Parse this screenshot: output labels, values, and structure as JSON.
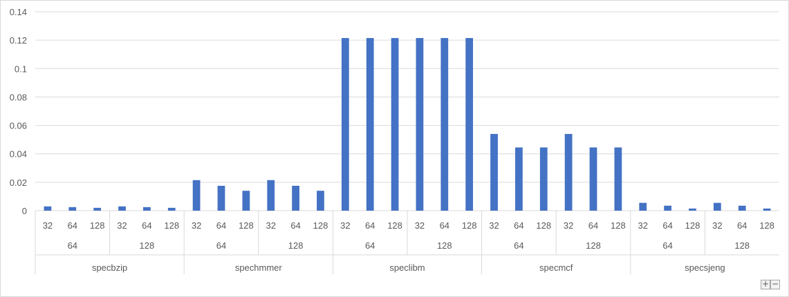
{
  "chart_data": {
    "type": "bar",
    "title": "",
    "xlabel": "",
    "ylabel": "",
    "ylim": [
      0,
      0.14
    ],
    "yticks": [
      0,
      0.02,
      0.04,
      0.06,
      0.08,
      0.1,
      0.12,
      0.14
    ],
    "ytick_labels": [
      "0",
      "0.02",
      "0.04",
      "0.06",
      "0.08",
      "0.1",
      "0.12",
      "0.14"
    ],
    "grid": true,
    "bar_color": "#4472C4",
    "groups": [
      {
        "name": "specbzip",
        "subgroups": [
          {
            "name": "64",
            "categories": [
              "32",
              "64",
              "128"
            ],
            "values": [
              0.003,
              0.0025,
              0.002
            ]
          },
          {
            "name": "128",
            "categories": [
              "32",
              "64",
              "128"
            ],
            "values": [
              0.003,
              0.0025,
              0.002
            ]
          }
        ]
      },
      {
        "name": "spechmmer",
        "subgroups": [
          {
            "name": "64",
            "categories": [
              "32",
              "64",
              "128"
            ],
            "values": [
              0.0215,
              0.0175,
              0.014
            ]
          },
          {
            "name": "128",
            "categories": [
              "32",
              "64",
              "128"
            ],
            "values": [
              0.0215,
              0.0175,
              0.014
            ]
          }
        ]
      },
      {
        "name": "speclibm",
        "subgroups": [
          {
            "name": "64",
            "categories": [
              "32",
              "64",
              "128"
            ],
            "values": [
              0.1215,
              0.1215,
              0.1215
            ]
          },
          {
            "name": "128",
            "categories": [
              "32",
              "64",
              "128"
            ],
            "values": [
              0.1215,
              0.1215,
              0.1215
            ]
          }
        ]
      },
      {
        "name": "specmcf",
        "subgroups": [
          {
            "name": "64",
            "categories": [
              "32",
              "64",
              "128"
            ],
            "values": [
              0.054,
              0.0445,
              0.0445
            ]
          },
          {
            "name": "128",
            "categories": [
              "32",
              "64",
              "128"
            ],
            "values": [
              0.054,
              0.0445,
              0.0445
            ]
          }
        ]
      },
      {
        "name": "specsjeng",
        "subgroups": [
          {
            "name": "64",
            "categories": [
              "32",
              "64",
              "128"
            ],
            "values": [
              0.0055,
              0.0035,
              0.0015
            ]
          },
          {
            "name": "128",
            "categories": [
              "32",
              "64",
              "128"
            ],
            "values": [
              0.0055,
              0.0035,
              0.0015
            ]
          }
        ]
      }
    ]
  },
  "controls": {
    "zoom_in_label": "+",
    "zoom_out_label": "−"
  }
}
